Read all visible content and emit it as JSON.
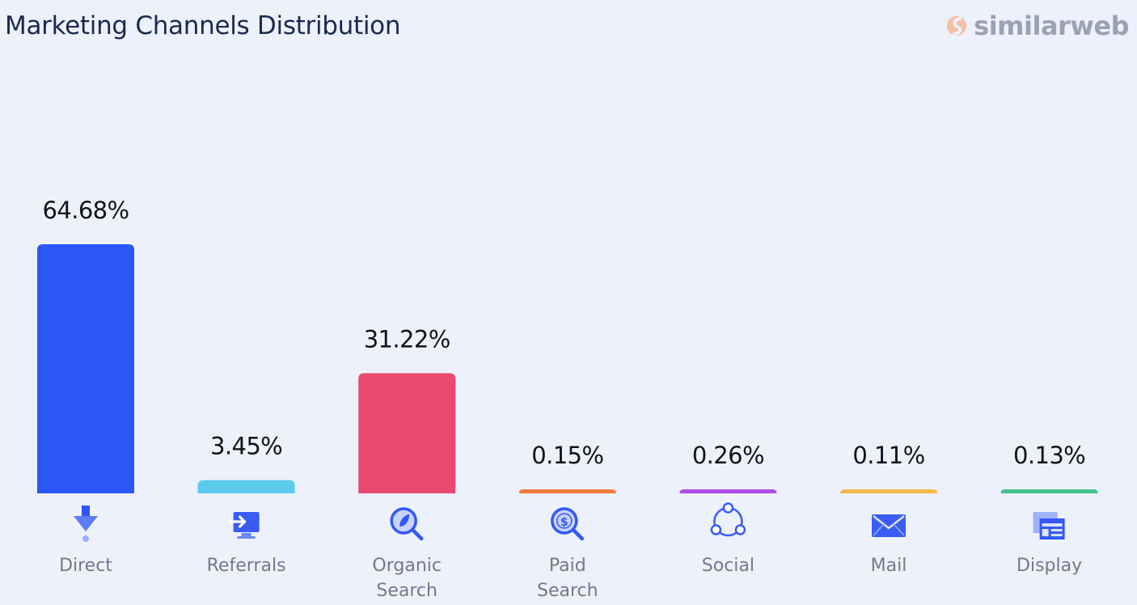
{
  "header": {
    "brand_name": "similarweb",
    "brand_icon": "similarweb-logo-icon"
  },
  "chart_data": {
    "type": "bar",
    "title": "Marketing Channels Distribution",
    "xlabel": "",
    "ylabel": "",
    "ylim": [
      0,
      64.68
    ],
    "grid": false,
    "legend": "none",
    "categories": [
      "Direct",
      "Referrals",
      "Organic Search",
      "Paid Search",
      "Social",
      "Mail",
      "Display"
    ],
    "values": [
      64.68,
      3.45,
      31.22,
      0.15,
      0.26,
      0.11,
      0.13
    ],
    "value_labels": [
      "64.68%",
      "3.45%",
      "31.22%",
      "0.15%",
      "0.26%",
      "0.11%",
      "0.13%"
    ],
    "category_lines": [
      [
        "Direct"
      ],
      [
        "Referrals"
      ],
      [
        "Organic",
        "Search"
      ],
      [
        "Paid",
        "Search"
      ],
      [
        "Social"
      ],
      [
        "Mail"
      ],
      [
        "Display"
      ]
    ],
    "colors": [
      "#2d57f5",
      "#5ccbee",
      "#ea4a72",
      "#f07a3c",
      "#b14bea",
      "#f5b94a",
      "#42c28e"
    ],
    "icons": [
      "direct-icon",
      "referrals-icon",
      "organic-search-icon",
      "paid-search-icon",
      "social-icon",
      "mail-icon",
      "display-icon"
    ]
  }
}
